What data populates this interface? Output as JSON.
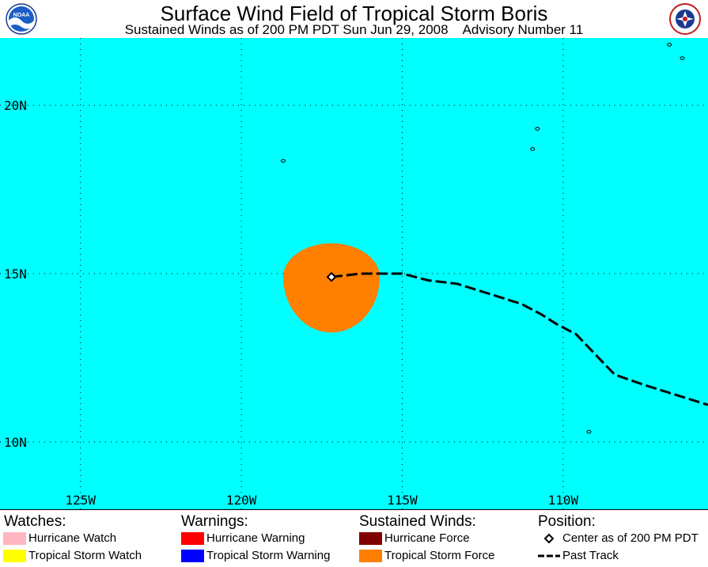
{
  "title": "Surface Wind Field of Tropical Storm Boris",
  "subtitle": {
    "time": "Sustained Winds as of 200 PM PDT Sun Jun 29, 2008",
    "advisory": "Advisory Number 11"
  },
  "logos": {
    "left": "noaa-logo",
    "right": "nws-logo"
  },
  "colors": {
    "ocean": "#00FFFF",
    "storm_force": "#FF7F00",
    "hurricane_force": "#800000",
    "hurricane_watch": "#FFB6C1",
    "tropical_storm_watch": "#FFFF00",
    "hurricane_warning": "#FF0000",
    "tropical_storm_warning": "#0000FF"
  },
  "map": {
    "lat_range": [
      8,
      22
    ],
    "lon_range": [
      -127.5,
      -105.5
    ],
    "lat_labels": [
      {
        "lat": 20,
        "text": "20N"
      },
      {
        "lat": 15,
        "text": "15N"
      },
      {
        "lat": 10,
        "text": "10N"
      }
    ],
    "lon_labels": [
      {
        "lon": -125,
        "text": "125W"
      },
      {
        "lon": -120,
        "text": "120W"
      },
      {
        "lon": -115,
        "text": "115W"
      },
      {
        "lon": -110,
        "text": "110W"
      }
    ],
    "center": {
      "lat": 14.9,
      "lon": -117.2
    },
    "tropical_storm_force_radius_deg": {
      "north": 1.0,
      "south": 1.65,
      "east": 1.5,
      "west": 1.5
    },
    "past_track": [
      [
        -117.2,
        14.9
      ],
      [
        -116.3,
        15.0
      ],
      [
        -115.0,
        15.0
      ],
      [
        -114.2,
        14.8
      ],
      [
        -113.3,
        14.7
      ],
      [
        -112.3,
        14.4
      ],
      [
        -111.3,
        14.1
      ],
      [
        -110.7,
        13.8
      ],
      [
        -110.2,
        13.5
      ],
      [
        -109.6,
        13.2
      ],
      [
        -109.0,
        12.6
      ],
      [
        -108.4,
        12.0
      ],
      [
        -107.5,
        11.7
      ],
      [
        -106.5,
        11.4
      ],
      [
        -105.5,
        11.1
      ]
    ],
    "islands": [
      {
        "lon": -118.7,
        "lat": 18.35
      },
      {
        "lon": -110.95,
        "lat": 18.7
      },
      {
        "lon": -110.8,
        "lat": 19.3
      },
      {
        "lon": -109.2,
        "lat": 10.3
      },
      {
        "lon": -106.7,
        "lat": 21.8
      },
      {
        "lon": -106.3,
        "lat": 21.4
      }
    ]
  },
  "legend": {
    "watches": {
      "heading": "Watches:",
      "items": [
        "Hurricane Watch",
        "Tropical Storm Watch"
      ]
    },
    "warnings": {
      "heading": "Warnings:",
      "items": [
        "Hurricane Warning",
        "Tropical Storm Warning"
      ]
    },
    "winds": {
      "heading": "Sustained Winds:",
      "items": [
        "Hurricane Force",
        "Tropical Storm Force"
      ]
    },
    "position": {
      "heading": "Position:",
      "items": [
        "Center as of 200 PM PDT",
        "Past Track"
      ]
    }
  }
}
